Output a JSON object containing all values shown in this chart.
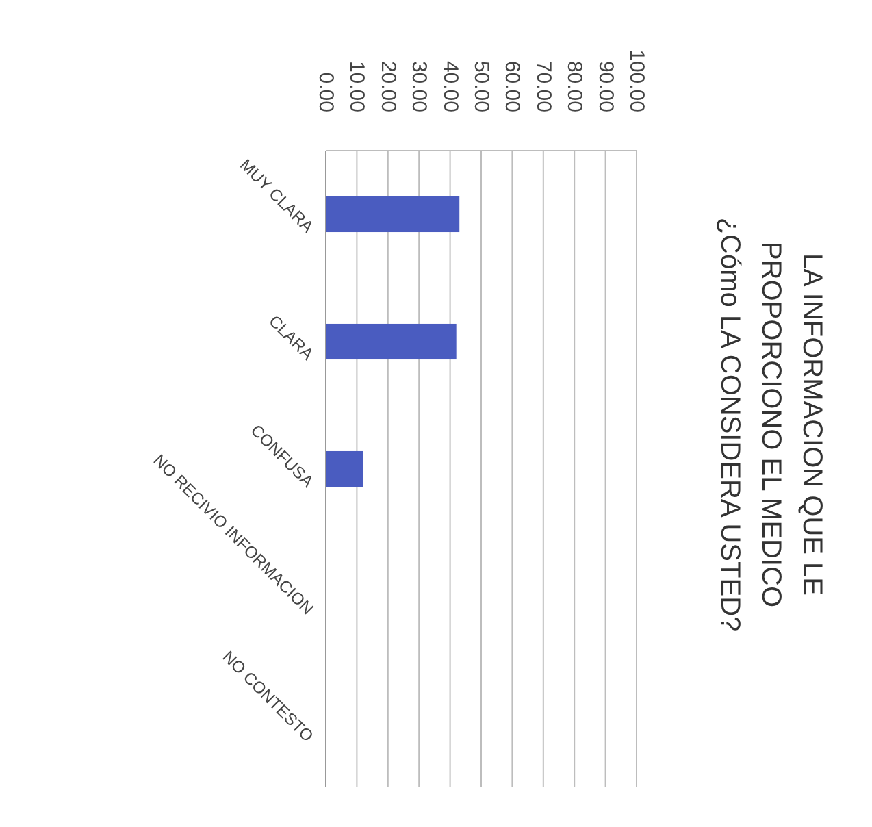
{
  "chart_data": {
    "type": "bar",
    "orientation": "horizontal",
    "title": "LA INFORMACION QUE LE PROPORCIONO EL MEDICO ¿Cómo LA CONSIDERA USTED?",
    "categories": [
      "MUY CLARA",
      "CLARA",
      "CONFUSA",
      "NO RECIVIO INFORMACION",
      "NO CONTESTO"
    ],
    "values": [
      43,
      42,
      12,
      0,
      0
    ],
    "color": "#4a5cc0",
    "xlim": [
      0,
      100
    ],
    "xticks": [
      {
        "value": 0,
        "label": "0.00"
      },
      {
        "value": 10,
        "label": "10.00"
      },
      {
        "value": 20,
        "label": "20.00"
      },
      {
        "value": 30,
        "label": "30.00"
      },
      {
        "value": 40,
        "label": "40.00"
      },
      {
        "value": 50,
        "label": "50.00"
      },
      {
        "value": 60,
        "label": "60.00"
      },
      {
        "value": 70,
        "label": "70.00"
      },
      {
        "value": 80,
        "label": "80.00"
      },
      {
        "value": 90,
        "label": "90.00"
      },
      {
        "value": 100,
        "label": "100.00"
      }
    ],
    "grid": true
  }
}
